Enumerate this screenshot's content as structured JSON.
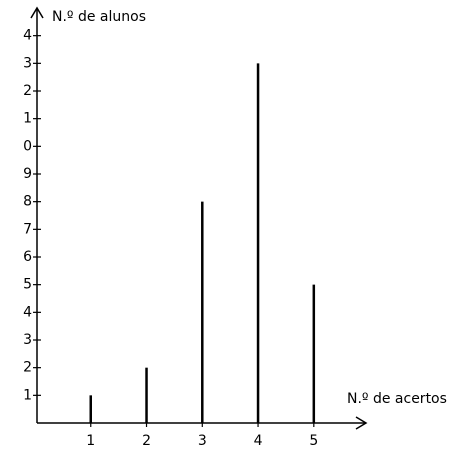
{
  "chart_data": {
    "type": "bar",
    "ylabel": "N.º de alunos",
    "xlabel": "N.º de acertos",
    "x": [
      1,
      2,
      3,
      4,
      5
    ],
    "values": [
      1,
      2,
      8,
      13,
      5
    ],
    "color": "#000000",
    "xlim": [
      0,
      5.9
    ],
    "xticks": [
      1,
      2,
      3,
      4,
      5
    ],
    "ylim": [
      0,
      15
    ],
    "yticks": [
      1,
      2,
      3,
      4,
      5,
      6,
      7,
      8,
      9,
      {
        "value": 10,
        "label": "0"
      },
      {
        "value": 11,
        "label": "1"
      },
      {
        "value": 12,
        "label": "2"
      },
      {
        "value": 13,
        "label": "3"
      },
      {
        "value": 14,
        "label": "4"
      }
    ]
  }
}
